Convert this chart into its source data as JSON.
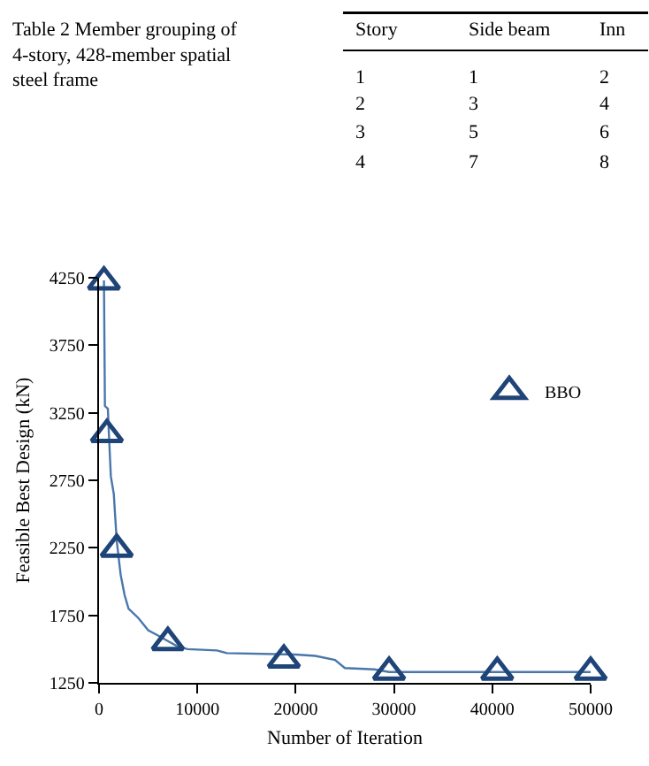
{
  "chart_data": {
    "type": "line",
    "xlabel": "Number of Iteration",
    "ylabel": "Feasible Best Design (kN)",
    "xlim": [
      0,
      50000
    ],
    "xticks": [
      0,
      10000,
      20000,
      30000,
      40000,
      50000
    ],
    "ylim": [
      1250,
      4250
    ],
    "yticks": [
      1250,
      1750,
      2250,
      2750,
      3250,
      3750,
      4250
    ],
    "grid": false,
    "legend": "right",
    "annotations": [
      "Table 2 Member grouping of\n4-story, 428-member spatial\nsteel frame",
      "Story",
      "Side beam",
      "Inn",
      "1",
      "1",
      "2",
      "2",
      "3",
      "4",
      "3",
      "5",
      "6",
      "4",
      "7",
      "8"
    ],
    "series": [
      {
        "color": "#4a77ab",
        "marker": "none",
        "x": [
          500,
          600,
          900,
          1000,
          1200,
          1500,
          1800,
          2200,
          2600,
          3000,
          4000,
          5000,
          6000,
          7000,
          8000,
          9000,
          12000,
          13000,
          20000,
          22000,
          24000,
          25000,
          28000,
          29500,
          50000
        ],
        "values": [
          4230,
          3300,
          3280,
          3100,
          2780,
          2650,
          2300,
          2050,
          1900,
          1800,
          1730,
          1640,
          1600,
          1560,
          1520,
          1500,
          1490,
          1470,
          1460,
          1450,
          1420,
          1360,
          1350,
          1330,
          1330
        ]
      },
      {
        "type": "scatter",
        "name": "BBO",
        "color": "#1f4478",
        "marker": "triangle",
        "x": [
          500,
          800,
          1800,
          7000,
          18800,
          29500,
          40500,
          50000
        ],
        "values": [
          4220,
          3090,
          2240,
          1550,
          1420,
          1330,
          1330,
          1330
        ]
      }
    ]
  }
}
